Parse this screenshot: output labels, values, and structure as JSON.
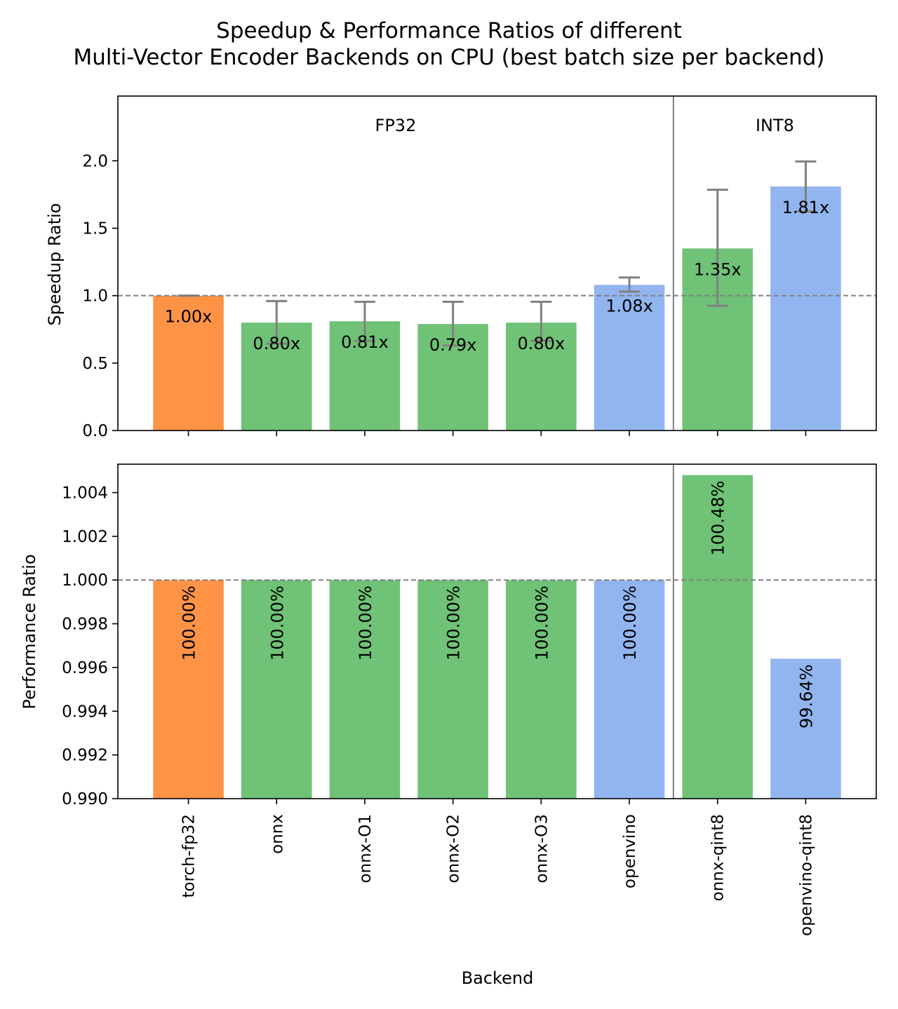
{
  "title_lines": [
    "Speedup & Performance Ratios of different",
    "Multi-Vector Encoder Backends on CPU (best batch size per backend)"
  ],
  "colors": {
    "torch": "#fe9346",
    "onnx": "#6fc276",
    "openvino": "#92b5ef",
    "errorbar": "#808080",
    "reference": "#808080",
    "divider": "#808080"
  },
  "chart_data": [
    {
      "type": "bar",
      "name": "speedup",
      "categories": [
        "torch-fp32",
        "onnx",
        "onnx-O1",
        "onnx-O2",
        "onnx-O3",
        "openvino",
        "onnx-qint8",
        "openvino-qint8"
      ],
      "values": [
        1.0,
        0.8,
        0.81,
        0.79,
        0.8,
        1.08,
        1.35,
        1.81
      ],
      "error_low": [
        1.0,
        0.645,
        0.665,
        0.63,
        0.665,
        1.03,
        0.925,
        1.625
      ],
      "error_high": [
        1.0,
        0.96,
        0.955,
        0.955,
        0.955,
        1.135,
        1.785,
        1.995
      ],
      "bar_labels": [
        "1.00x",
        "0.80x",
        "0.81x",
        "0.79x",
        "0.80x",
        "1.08x",
        "1.35x",
        "1.81x"
      ],
      "bar_colors": [
        "torch",
        "onnx",
        "onnx",
        "onnx",
        "onnx",
        "openvino",
        "onnx",
        "openvino"
      ],
      "group_labels": [
        "FP32",
        "INT8"
      ],
      "ylabel": "Speedup Ratio",
      "xlabel": "",
      "ylim": [
        0,
        2.48
      ],
      "yticks": [
        0.0,
        0.5,
        1.0,
        1.5,
        2.0
      ],
      "ytick_labels": [
        "0.0",
        "0.5",
        "1.0",
        "1.5",
        "2.0"
      ],
      "reference_line": 1.0,
      "grid": false
    },
    {
      "type": "bar",
      "name": "performance",
      "categories": [
        "torch-fp32",
        "onnx",
        "onnx-O1",
        "onnx-O2",
        "onnx-O3",
        "openvino",
        "onnx-qint8",
        "openvino-qint8"
      ],
      "values": [
        1.0,
        1.0,
        1.0,
        1.0,
        1.0,
        1.0,
        1.0048,
        0.9964
      ],
      "bar_labels": [
        "100.00%",
        "100.00%",
        "100.00%",
        "100.00%",
        "100.00%",
        "100.00%",
        "100.48%",
        "99.64%"
      ],
      "bar_colors": [
        "torch",
        "onnx",
        "onnx",
        "onnx",
        "onnx",
        "openvino",
        "onnx",
        "openvino"
      ],
      "ylabel": "Performance Ratio",
      "xlabel": "Backend",
      "ylim": [
        0.99,
        1.0053
      ],
      "yticks": [
        0.99,
        0.992,
        0.994,
        0.996,
        0.998,
        1.0,
        1.002,
        1.004
      ],
      "ytick_labels": [
        "0.990",
        "0.992",
        "0.994",
        "0.996",
        "0.998",
        "1.000",
        "1.002",
        "1.004"
      ],
      "reference_line": 1.0,
      "grid": false
    }
  ]
}
